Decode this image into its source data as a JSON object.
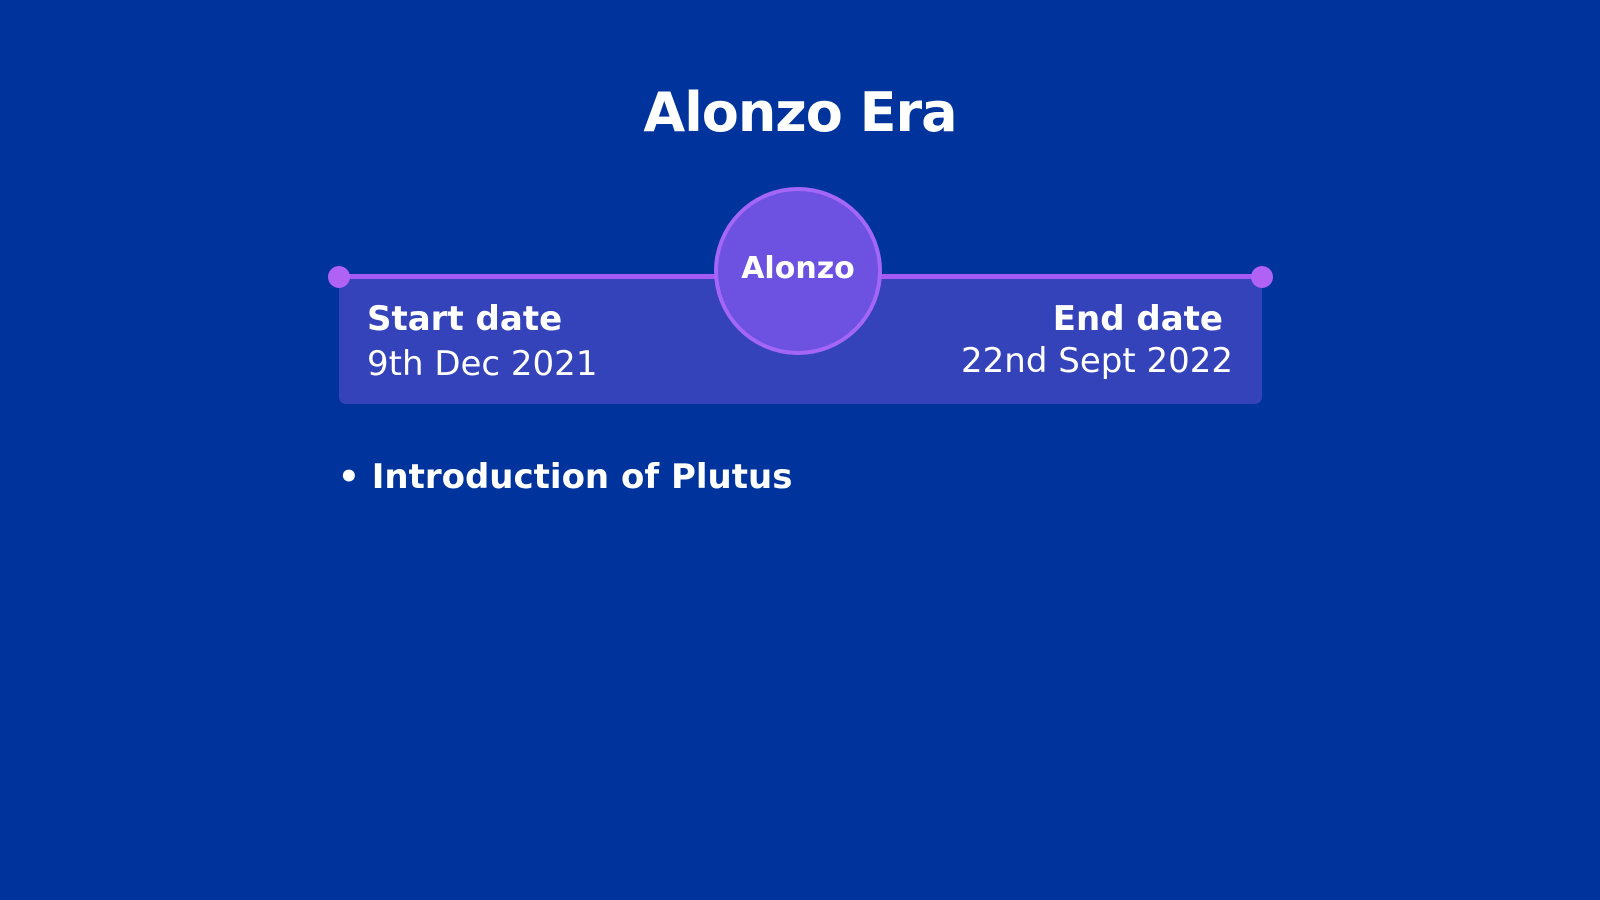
{
  "slide": {
    "title": "Alonzo Era"
  },
  "timeline": {
    "era_name": "Alonzo",
    "start_label": "Start date",
    "start_value": "9th Dec 2021",
    "end_label": "End date",
    "end_value": "22nd Sept 2022"
  },
  "bullets": [
    "Introduction of Plutus"
  ],
  "colors": {
    "background": "#00339c",
    "panel": "#3443b9",
    "line": "#a55af2",
    "circle_fill": "#6d51e0",
    "circle_border": "#a466f7"
  }
}
